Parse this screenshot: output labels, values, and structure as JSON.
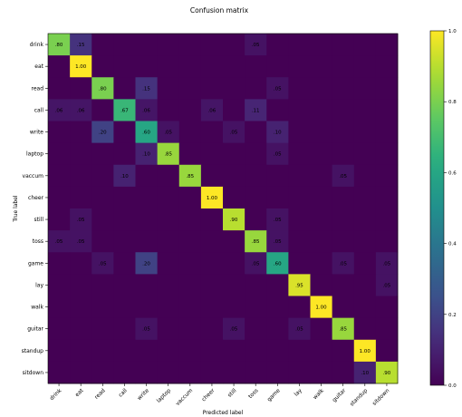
{
  "chart_data": {
    "type": "heatmap",
    "title": "Confusion matrix",
    "xlabel": "Predicted label",
    "ylabel": "True label",
    "categories": [
      "drink",
      "eat",
      "read",
      "call",
      "write",
      "laptop",
      "vaccum",
      "cheer",
      "still",
      "toss",
      "game",
      "lay",
      "walk",
      "guitar",
      "standup",
      "sitdown"
    ],
    "values": [
      [
        0.8,
        0.15,
        0,
        0,
        0,
        0,
        0,
        0,
        0,
        0.05,
        0,
        0,
        0,
        0,
        0,
        0
      ],
      [
        0,
        1.0,
        0,
        0,
        0,
        0,
        0,
        0,
        0,
        0,
        0,
        0,
        0,
        0,
        0,
        0
      ],
      [
        0,
        0,
        0.8,
        0,
        0.15,
        0,
        0,
        0,
        0,
        0,
        0.05,
        0,
        0,
        0,
        0,
        0
      ],
      [
        0.06,
        0.06,
        0,
        0.67,
        0.06,
        0,
        0,
        0.06,
        0,
        0.11,
        0,
        0,
        0,
        0,
        0,
        0
      ],
      [
        0,
        0,
        0.2,
        0,
        0.6,
        0.05,
        0,
        0,
        0.05,
        0,
        0.1,
        0,
        0,
        0,
        0,
        0
      ],
      [
        0,
        0,
        0,
        0,
        0.1,
        0.85,
        0,
        0,
        0,
        0,
        0.05,
        0,
        0,
        0,
        0,
        0
      ],
      [
        0,
        0,
        0,
        0.1,
        0,
        0,
        0.85,
        0,
        0,
        0,
        0,
        0,
        0,
        0.05,
        0,
        0
      ],
      [
        0,
        0,
        0,
        0,
        0,
        0,
        0,
        1.0,
        0,
        0,
        0,
        0,
        0,
        0,
        0,
        0
      ],
      [
        0,
        0.05,
        0,
        0,
        0,
        0,
        0,
        0,
        0.9,
        0,
        0.05,
        0,
        0,
        0,
        0,
        0
      ],
      [
        0.05,
        0.05,
        0,
        0,
        0,
        0,
        0,
        0,
        0,
        0.85,
        0.05,
        0,
        0,
        0,
        0,
        0
      ],
      [
        0,
        0,
        0.05,
        0,
        0.2,
        0,
        0,
        0,
        0,
        0.05,
        0.6,
        0,
        0,
        0.05,
        0,
        0.05
      ],
      [
        0,
        0,
        0,
        0,
        0,
        0,
        0,
        0,
        0,
        0,
        0,
        0.95,
        0,
        0,
        0,
        0.05
      ],
      [
        0,
        0,
        0,
        0,
        0,
        0,
        0,
        0,
        0,
        0,
        0,
        0,
        1.0,
        0,
        0,
        0
      ],
      [
        0,
        0,
        0,
        0,
        0.05,
        0,
        0,
        0,
        0.05,
        0,
        0,
        0.05,
        0,
        0.85,
        0,
        0
      ],
      [
        0,
        0,
        0,
        0,
        0,
        0,
        0,
        0,
        0,
        0,
        0,
        0,
        0,
        0,
        1.0,
        0
      ],
      [
        0,
        0,
        0,
        0,
        0,
        0,
        0,
        0,
        0,
        0,
        0,
        0,
        0,
        0,
        0.1,
        0.9
      ]
    ],
    "colorbar": {
      "range": [
        0.0,
        1.0
      ],
      "ticks": [
        "0.0",
        "0.2",
        "0.4",
        "0.6",
        "0.8",
        "1.0"
      ]
    },
    "colormap": "viridis"
  }
}
